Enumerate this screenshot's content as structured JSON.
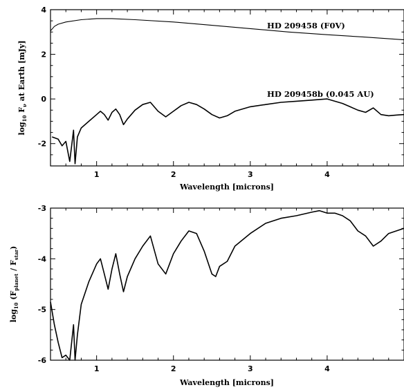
{
  "chart_data": [
    {
      "type": "line",
      "panel": "top",
      "ylabel_main": "log",
      "ylabel_sub": "10",
      "ylabel_rest_1": " F",
      "ylabel_sub_2": "ν",
      "ylabel_rest_2": " at Earth [mJy]",
      "xlabel": "Wavelength  [microns]",
      "xlim": [
        0.4,
        5.0
      ],
      "ylim": [
        -3,
        4
      ],
      "x_ticks": [
        "1",
        "2",
        "3",
        "4",
        "5"
      ],
      "y_ticks": [
        "4",
        "2",
        "0",
        "-2"
      ],
      "series": [
        {
          "name": "HD 209458 (F0V)",
          "x": [
            0.4,
            0.45,
            0.5,
            0.6,
            0.8,
            1.0,
            1.2,
            1.5,
            2.0,
            2.5,
            3.0,
            3.5,
            4.0,
            4.5,
            5.0
          ],
          "y": [
            3.05,
            3.25,
            3.35,
            3.45,
            3.55,
            3.6,
            3.6,
            3.55,
            3.45,
            3.3,
            3.15,
            3.0,
            2.88,
            2.77,
            2.65
          ]
        },
        {
          "name": "HD 209458b (0.045 AU)",
          "x": [
            0.42,
            0.5,
            0.55,
            0.6,
            0.65,
            0.7,
            0.72,
            0.75,
            0.8,
            0.9,
            1.0,
            1.05,
            1.1,
            1.15,
            1.2,
            1.25,
            1.3,
            1.35,
            1.4,
            1.5,
            1.6,
            1.7,
            1.8,
            1.9,
            2.0,
            2.1,
            2.2,
            2.3,
            2.4,
            2.5,
            2.6,
            2.7,
            2.8,
            3.0,
            3.2,
            3.4,
            3.6,
            3.8,
            4.0,
            4.2,
            4.4,
            4.5,
            4.6,
            4.7,
            4.8,
            4.9,
            5.0
          ],
          "y": [
            -1.7,
            -1.8,
            -2.1,
            -1.9,
            -2.8,
            -1.4,
            -2.9,
            -1.7,
            -1.3,
            -1.0,
            -0.7,
            -0.55,
            -0.7,
            -0.95,
            -0.6,
            -0.45,
            -0.7,
            -1.15,
            -0.9,
            -0.5,
            -0.25,
            -0.15,
            -0.55,
            -0.8,
            -0.55,
            -0.3,
            -0.15,
            -0.25,
            -0.45,
            -0.7,
            -0.85,
            -0.75,
            -0.55,
            -0.35,
            -0.25,
            -0.15,
            -0.1,
            -0.05,
            0.0,
            -0.2,
            -0.5,
            -0.6,
            -0.4,
            -0.7,
            -0.75,
            -0.72,
            -0.7
          ]
        }
      ]
    },
    {
      "type": "line",
      "panel": "bottom",
      "ylabel_main": "log",
      "ylabel_sub": "10",
      "ylabel_rest_1": " (F",
      "ylabel_sub_2": "planet",
      "ylabel_rest_2": " / F",
      "ylabel_sub_3": "star",
      "ylabel_rest_3": ")",
      "xlabel": "Wavelength  [microns]",
      "xlim": [
        0.4,
        5.0
      ],
      "ylim": [
        -6,
        -3
      ],
      "x_ticks": [
        "1",
        "2",
        "3",
        "4",
        "5"
      ],
      "y_ticks": [
        "-3",
        "-4",
        "-5",
        "-6"
      ],
      "series": [
        {
          "x": [
            0.4,
            0.45,
            0.5,
            0.55,
            0.6,
            0.65,
            0.7,
            0.72,
            0.75,
            0.8,
            0.9,
            1.0,
            1.05,
            1.1,
            1.15,
            1.2,
            1.25,
            1.3,
            1.35,
            1.4,
            1.5,
            1.6,
            1.7,
            1.8,
            1.9,
            2.0,
            2.1,
            2.2,
            2.3,
            2.4,
            2.5,
            2.55,
            2.6,
            2.7,
            2.8,
            3.0,
            3.2,
            3.4,
            3.6,
            3.8,
            3.9,
            4.0,
            4.1,
            4.2,
            4.3,
            4.4,
            4.5,
            4.6,
            4.7,
            4.8,
            4.9,
            5.0
          ],
          "y": [
            -4.85,
            -5.3,
            -5.65,
            -5.95,
            -5.9,
            -6.0,
            -5.3,
            -6.0,
            -5.5,
            -4.9,
            -4.45,
            -4.1,
            -4.0,
            -4.3,
            -4.6,
            -4.2,
            -3.9,
            -4.3,
            -4.65,
            -4.35,
            -4.0,
            -3.75,
            -3.55,
            -4.1,
            -4.3,
            -3.9,
            -3.65,
            -3.45,
            -3.5,
            -3.85,
            -4.3,
            -4.35,
            -4.15,
            -4.05,
            -3.75,
            -3.5,
            -3.3,
            -3.2,
            -3.15,
            -3.08,
            -3.05,
            -3.1,
            -3.1,
            -3.15,
            -3.25,
            -3.45,
            -3.55,
            -3.75,
            -3.65,
            -3.5,
            -3.45,
            -3.4
          ]
        }
      ]
    }
  ]
}
